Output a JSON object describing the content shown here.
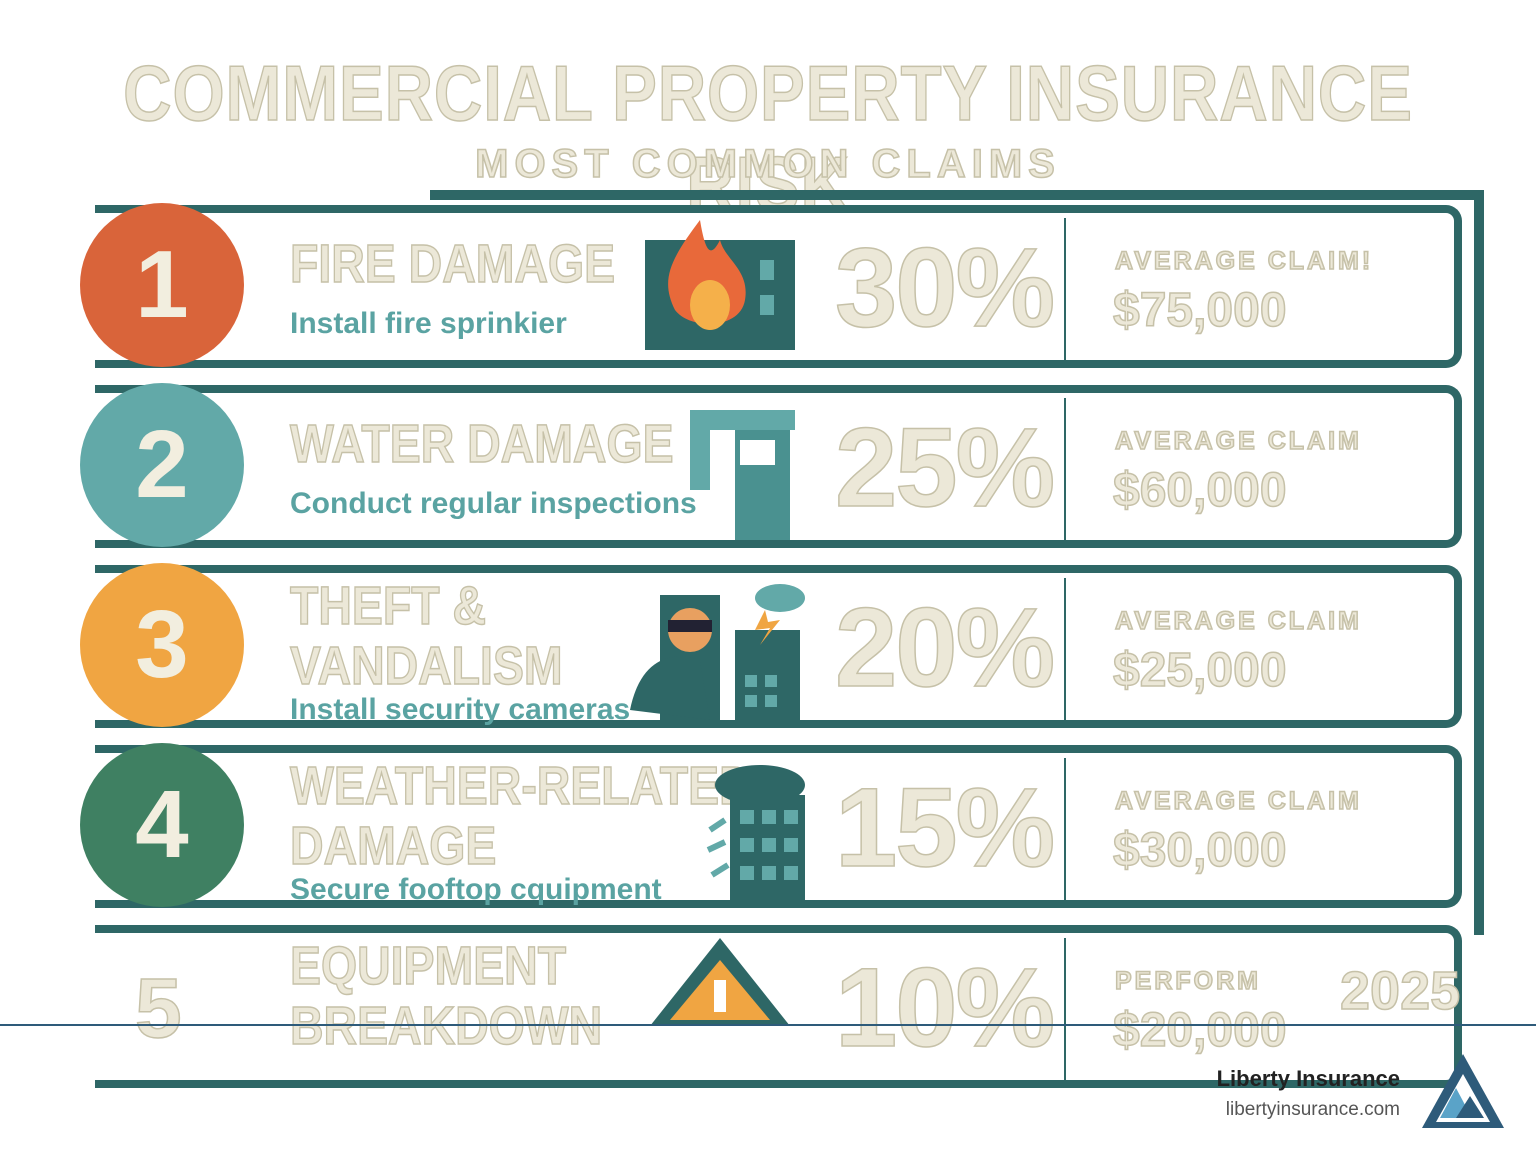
{
  "header": {
    "title": "COMMERCIAL PROPERTY INSURANCE RISK",
    "subtitle": "MOST COMMON CLAIMS"
  },
  "items": [
    {
      "number": "1",
      "color": "#d9643a",
      "title_lines": [
        "FIRE DAMAGE"
      ],
      "tip": "Install fire sprinkier",
      "percent": "30%",
      "claim_label": "AVERAGE CLAIM!",
      "claim_amount": "$75,000"
    },
    {
      "number": "2",
      "color": "#62a9a8",
      "title_lines": [
        "WATER DAMAGE"
      ],
      "tip": "Conduct regular inspections",
      "percent": "25%",
      "claim_label": "AVERAGE CLAIM",
      "claim_amount": "$60,000"
    },
    {
      "number": "3",
      "color": "#f0a542",
      "title_lines": [
        "THEFT &",
        "VANDALISM"
      ],
      "tip": "Install security cameras",
      "percent": "20%",
      "claim_label": "AVERAGE CLAIM",
      "claim_amount": "$25,000"
    },
    {
      "number": "4",
      "color": "#3f8062",
      "title_lines": [
        "WEATHER-RELATED",
        "DAMAGE"
      ],
      "tip": "Secure fooftop cquipment",
      "percent": "15%",
      "claim_label": "AVERAGE CLAIM",
      "claim_amount": "$30,000"
    },
    {
      "number": "5",
      "title_lines": [
        "EQUIPMENT",
        "BREAKDOWN"
      ],
      "percent": "10%",
      "claim_label": "PERFORM",
      "claim_amount": "$20,000",
      "year": "2025"
    }
  ],
  "footer": {
    "brand": "Liberty Insurance",
    "url": "libertyinsurance.com"
  }
}
